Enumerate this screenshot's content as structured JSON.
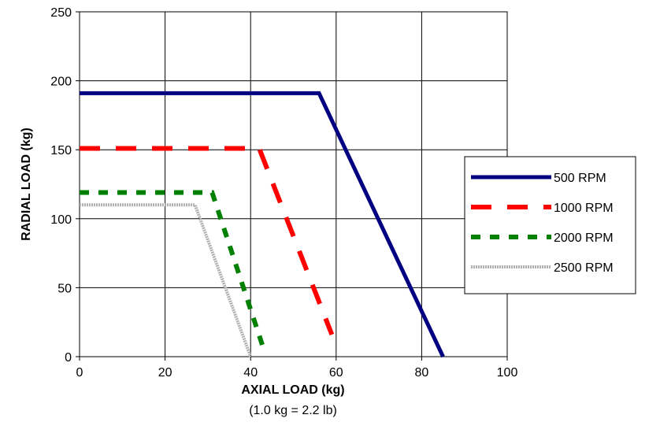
{
  "chart_data": {
    "type": "line",
    "title": "",
    "xlabel": "AXIAL LOAD (kg)",
    "xlabel_note": "(1.0 kg = 2.2 lb)",
    "ylabel": "RADIAL LOAD (kg)",
    "xlim": [
      0,
      100
    ],
    "ylim": [
      0,
      250
    ],
    "xticks": [
      0,
      20,
      40,
      60,
      80,
      100
    ],
    "yticks": [
      0,
      50,
      100,
      150,
      200,
      250
    ],
    "grid": true,
    "legend_position": "right",
    "series": [
      {
        "name": "500 RPM",
        "color": "#000080",
        "style": "solid",
        "points": [
          [
            0,
            191
          ],
          [
            56,
            191
          ],
          [
            85,
            0
          ]
        ]
      },
      {
        "name": "1000 RPM",
        "color": "#ff0000",
        "style": "long-dash",
        "points": [
          [
            0,
            151
          ],
          [
            42,
            151
          ],
          [
            59,
            16
          ]
        ]
      },
      {
        "name": "2000 RPM",
        "color": "#008000",
        "style": "dash",
        "points": [
          [
            0,
            119
          ],
          [
            31,
            119
          ],
          [
            43,
            6
          ]
        ]
      },
      {
        "name": "2500 RPM",
        "color": "#b0b0b0",
        "style": "dotted",
        "points": [
          [
            0,
            110
          ],
          [
            27,
            110
          ],
          [
            40,
            0
          ]
        ]
      }
    ]
  }
}
